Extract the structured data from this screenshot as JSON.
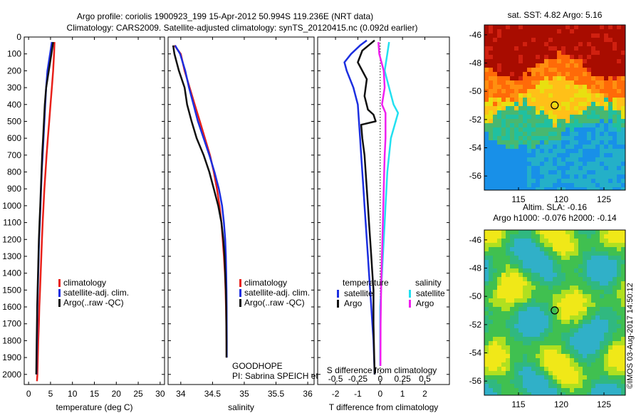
{
  "header": {
    "title_line1": "Argo profile: coriolis 1900923_199 15-Apr-2012 50.994S 119.236E (NRT data)",
    "title_line2": "Climatology: CARS2009. Satellite-adjusted climatology: synTS_20120415.nc (0.092d earlier)"
  },
  "colors": {
    "climatology": "#e8201a",
    "satellite": "#1c2fe0",
    "argo": "#111111",
    "sal_satellite": "#22e0f0",
    "sal_argo": "#f020f0"
  },
  "chart_data": [
    {
      "type": "line",
      "xlabel": "temperature (deg C)",
      "xlim": [
        -1,
        31
      ],
      "xticks": [
        0,
        5,
        10,
        15,
        20,
        25,
        30
      ],
      "ylim": [
        0,
        2060
      ],
      "yticks": [
        0,
        100,
        200,
        300,
        400,
        500,
        600,
        700,
        800,
        900,
        1000,
        1100,
        1200,
        1300,
        1400,
        1500,
        1600,
        1700,
        1800,
        1900,
        2000
      ],
      "legend_position": "lower-center",
      "series": [
        {
          "name": "climatology",
          "color": "#e8201a",
          "x": [
            5.9,
            5.8,
            5.6,
            5.3,
            5.0,
            4.7,
            4.4,
            4.1,
            3.85,
            3.6,
            3.4,
            3.2,
            3.05,
            2.9,
            2.75,
            2.6,
            2.45,
            2.35,
            2.2,
            2.1,
            2.0,
            1.9
          ],
          "y": [
            30,
            100,
            200,
            300,
            400,
            500,
            600,
            700,
            800,
            900,
            1000,
            1100,
            1200,
            1300,
            1400,
            1500,
            1600,
            1700,
            1800,
            1900,
            2000,
            2040
          ]
        },
        {
          "name": "satellite-adj. clim.",
          "color": "#1c2fe0",
          "x": [
            5.3,
            4.9,
            4.3,
            4.0,
            3.8,
            3.6,
            3.4,
            3.2,
            3.0,
            2.85,
            2.7,
            2.55,
            2.4,
            2.3,
            2.2,
            2.1,
            2.0,
            1.95,
            1.9,
            1.85,
            1.8
          ],
          "y": [
            30,
            100,
            200,
            300,
            400,
            500,
            600,
            700,
            800,
            900,
            1000,
            1100,
            1200,
            1300,
            1400,
            1500,
            1600,
            1700,
            1800,
            1900,
            2000
          ]
        },
        {
          "name": "Argo(..raw -QC)",
          "color": "#111111",
          "x": [
            5.6,
            5.2,
            4.6,
            4.0,
            3.7,
            3.5,
            3.3,
            3.1,
            2.95,
            2.8,
            2.65,
            2.5,
            2.35,
            2.25,
            2.15,
            2.05,
            1.95,
            1.9,
            1.85,
            1.8,
            1.75
          ],
          "y": [
            30,
            100,
            200,
            300,
            400,
            500,
            600,
            700,
            800,
            900,
            1000,
            1100,
            1200,
            1300,
            1400,
            1500,
            1600,
            1700,
            1800,
            1900,
            2000
          ]
        }
      ]
    },
    {
      "type": "line",
      "xlabel": "salinity",
      "xlim": [
        33.8,
        36.1
      ],
      "xticks": [
        34,
        34.5,
        35,
        35.5,
        36
      ],
      "xtick_labels": [
        "34",
        "34.5",
        "35",
        "35.5",
        "36"
      ],
      "ylim": [
        0,
        2060
      ],
      "legend_position": "lower-center",
      "annotation_lines": [
        "GOODHOPE",
        "PI: Sabrina SPEICH et Michel ARHAN"
      ],
      "series": [
        {
          "name": "climatology",
          "color": "#e8201a",
          "x": [
            33.9,
            34.0,
            34.06,
            34.14,
            34.22,
            34.3,
            34.38,
            34.46,
            34.52,
            34.57,
            34.61,
            34.64,
            34.66,
            34.68,
            34.695,
            34.705,
            34.712,
            34.717,
            34.72,
            34.722
          ],
          "y": [
            50,
            100,
            200,
            300,
            400,
            500,
            600,
            700,
            800,
            900,
            1000,
            1100,
            1200,
            1300,
            1400,
            1500,
            1600,
            1700,
            1800,
            1900
          ]
        },
        {
          "name": "satellite-adj. clim.",
          "color": "#1c2fe0",
          "x": [
            33.91,
            33.99,
            34.07,
            34.13,
            34.2,
            34.27,
            34.36,
            34.45,
            34.53,
            34.6,
            34.65,
            34.68,
            34.7,
            34.71,
            34.715,
            34.72,
            34.722,
            34.723,
            34.724,
            34.725
          ],
          "y": [
            50,
            100,
            200,
            300,
            400,
            500,
            600,
            700,
            800,
            900,
            1000,
            1100,
            1200,
            1300,
            1400,
            1500,
            1600,
            1700,
            1800,
            1900
          ]
        },
        {
          "name": "Argo(..raw -QC)",
          "color": "#111111",
          "x": [
            33.88,
            33.9,
            33.97,
            34.06,
            34.1,
            34.17,
            34.25,
            34.36,
            34.45,
            34.52,
            34.59,
            34.64,
            34.67,
            34.69,
            34.7,
            34.71,
            34.715,
            34.718,
            34.72,
            34.72
          ],
          "y": [
            50,
            100,
            200,
            300,
            400,
            500,
            600,
            700,
            800,
            900,
            1000,
            1100,
            1200,
            1300,
            1400,
            1500,
            1600,
            1700,
            1800,
            1900
          ]
        }
      ]
    },
    {
      "type": "line",
      "xlabel": "T difference from climatology",
      "xlabel_top": "S difference from climatology",
      "xlim": [
        -2.8,
        3.1
      ],
      "xticks": [
        -2,
        -1,
        0,
        1,
        2
      ],
      "top_xlim": [
        -0.7,
        0.775
      ],
      "top_xticks": [
        -0.5,
        -0.25,
        0,
        0.25,
        0.5
      ],
      "top_xtick_labels": [
        "-0.5",
        "-0.25",
        "0",
        "0.25",
        "0.5"
      ],
      "ylim": [
        0,
        2060
      ],
      "legend_left_title": "temperature",
      "legend_right_title": "salinity",
      "series": [
        {
          "name": "satellite",
          "group": "temperature",
          "color": "#1c2fe0",
          "x": [
            -0.6,
            -0.9,
            -1.3,
            -1.6,
            -1.5,
            -1.2,
            -1.0,
            -0.95,
            -0.9,
            -0.85,
            -0.8,
            -0.75,
            -0.7,
            -0.65,
            -0.6,
            -0.55,
            -0.5,
            -0.45,
            -0.4,
            -0.35,
            -0.3,
            -0.25
          ],
          "y": [
            20,
            50,
            100,
            150,
            200,
            300,
            400,
            500,
            600,
            700,
            800,
            900,
            1000,
            1100,
            1200,
            1300,
            1400,
            1500,
            1600,
            1700,
            1800,
            2000
          ]
        },
        {
          "name": "Argo",
          "group": "temperature",
          "color": "#111111",
          "x": [
            -0.25,
            -0.8,
            -1.0,
            -0.6,
            -0.7,
            -0.55,
            -0.3,
            -0.2,
            -0.85,
            -0.8,
            -0.7,
            -0.65,
            -0.6,
            -0.55,
            -0.5,
            -0.45,
            -0.4,
            -0.35,
            -0.3,
            -0.3,
            -0.25
          ],
          "y": [
            20,
            80,
            150,
            250,
            350,
            430,
            460,
            500,
            520,
            600,
            700,
            800,
            900,
            1000,
            1100,
            1200,
            1300,
            1400,
            1500,
            1700,
            2000
          ]
        },
        {
          "name": "satellite",
          "group": "salinity",
          "color": "#22e0f0",
          "x": [
            0.1,
            0.08,
            0.05,
            0.1,
            0.15,
            0.2,
            0.12,
            0.1,
            0.08,
            0.07,
            0.06,
            0.05,
            0.04,
            0.03,
            0.02,
            0.01,
            0.0,
            0.0,
            0.0
          ],
          "y": [
            30,
            100,
            200,
            300,
            400,
            450,
            600,
            700,
            800,
            900,
            1000,
            1100,
            1200,
            1300,
            1400,
            1500,
            1600,
            1800,
            1950
          ]
        },
        {
          "name": "Argo",
          "group": "salinity",
          "color": "#f020f0",
          "x": [
            -0.02,
            -0.01,
            0.04,
            0.05,
            0.02,
            0.06,
            0.06,
            0.05,
            0.045,
            0.04,
            0.035,
            0.03,
            0.025,
            0.02,
            0.015,
            0.01,
            0.005,
            0.003
          ],
          "y": [
            30,
            100,
            200,
            300,
            400,
            450,
            600,
            700,
            800,
            900,
            1000,
            1100,
            1200,
            1300,
            1400,
            1500,
            1700,
            1950
          ]
        }
      ]
    },
    {
      "type": "heatmap",
      "title": "sat. SST: 4.82 Argo: 5.16",
      "xlim": [
        111,
        127.5
      ],
      "xticks": [
        115,
        120,
        125
      ],
      "ylim": [
        -57,
        -45.3
      ],
      "yticks": [
        -46,
        -48,
        -50,
        -52,
        -54,
        -56
      ],
      "marker": {
        "lon": 119.236,
        "lat": -50.994
      }
    },
    {
      "type": "heatmap",
      "title": "Altim. SLA: -0.16",
      "subtitle": "Argo h1000: -0.076 h2000: -0.14",
      "xlim": [
        111,
        127.5
      ],
      "xticks": [
        115,
        120,
        125
      ],
      "ylim": [
        -57,
        -45.3
      ],
      "yticks": [
        -46,
        -48,
        -50,
        -52,
        -54,
        -56
      ],
      "marker": {
        "lon": 119.236,
        "lat": -50.994
      }
    }
  ],
  "footer_stamp": "©IMOS 03-Aug-2017 14:50:12"
}
